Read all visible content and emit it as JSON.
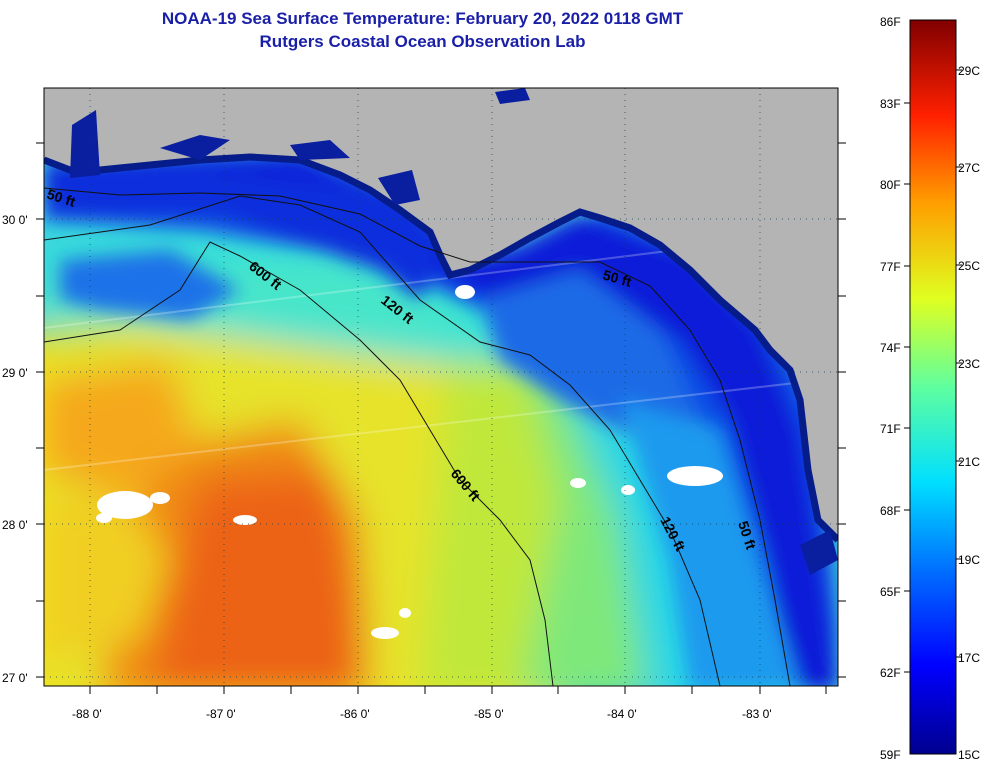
{
  "header": {
    "title": "NOAA-19 Sea Surface Temperature:  February 20, 2022 0118 GMT",
    "subtitle": "Rutgers Coastal Ocean Observation Lab"
  },
  "map": {
    "lat_labels": [
      "30 0'",
      "29 0'",
      "28 0'",
      "27 0'"
    ],
    "lon_labels": [
      "-88 0'",
      "-87 0'",
      "-86 0'",
      "-85 0'",
      "-84 0'",
      "-83 0'"
    ],
    "contour_labels": [
      {
        "text": "50 ft",
        "name": "contour-label-50ft-west"
      },
      {
        "text": "600 ft",
        "name": "contour-label-600ft-north"
      },
      {
        "text": "120 ft",
        "name": "contour-label-120ft-north"
      },
      {
        "text": "50 ft",
        "name": "contour-label-50ft-north"
      },
      {
        "text": "600 ft",
        "name": "contour-label-600ft-south"
      },
      {
        "text": "120 ft",
        "name": "contour-label-120ft-south"
      },
      {
        "text": "50 ft",
        "name": "contour-label-50ft-east"
      }
    ],
    "colors": {
      "land": "#b4b4b4",
      "cloud": "#ffffff"
    }
  },
  "colorbar": {
    "fahrenheit_labels": [
      "86F",
      "83F",
      "80F",
      "77F",
      "74F",
      "71F",
      "68F",
      "65F",
      "62F",
      "59F"
    ],
    "celsius_labels": [
      "29C",
      "27C",
      "25C",
      "23C",
      "21C",
      "19C",
      "17C",
      "15C"
    ]
  }
}
